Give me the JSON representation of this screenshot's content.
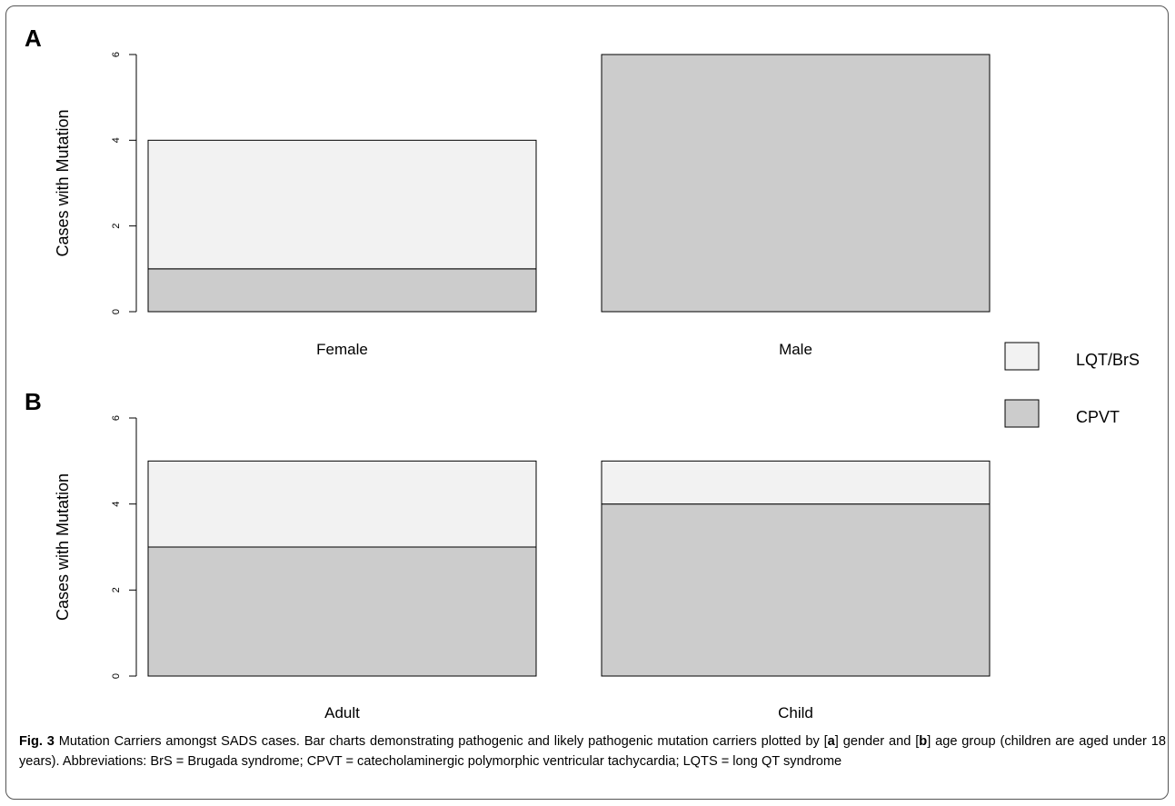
{
  "chart_data": {
    "type": "bar",
    "stacked": true,
    "panels": [
      {
        "letter": "A",
        "categories": [
          "Female",
          "Male"
        ],
        "ylabel": "Cases with Mutation",
        "ylim": [
          0,
          6
        ],
        "yticks": [
          0,
          2,
          4,
          6
        ],
        "series": [
          {
            "name": "CPVT",
            "values": [
              1,
              6
            ]
          },
          {
            "name": "LQT/BrS",
            "values": [
              3,
              0
            ]
          }
        ]
      },
      {
        "letter": "B",
        "categories": [
          "Adult",
          "Child"
        ],
        "ylabel": "Cases with Mutation",
        "ylim": [
          0,
          6
        ],
        "yticks": [
          0,
          2,
          4,
          6
        ],
        "series": [
          {
            "name": "CPVT",
            "values": [
              3,
              4
            ]
          },
          {
            "name": "LQT/BrS",
            "values": [
              2,
              1
            ]
          }
        ]
      }
    ],
    "legend": {
      "position": "right",
      "entries": [
        {
          "name": "LQT/BrS",
          "color": "#f2f2f2"
        },
        {
          "name": "CPVT",
          "color": "#cccccc"
        }
      ]
    }
  },
  "colors": {
    "CPVT": "#cccccc",
    "LQT/BrS": "#f2f2f2"
  },
  "caption": {
    "fig_label": "Fig. 3",
    "text1": " Mutation Carriers amongst SADS cases. Bar charts demonstrating pathogenic and likely pathogenic mutation carriers plotted by [",
    "ref_a": "a",
    "text2": "] gender and [",
    "ref_b": "b",
    "text3": "] age group (children are aged under 18 years). Abbreviations: BrS = Brugada syndrome; CPVT = catecholaminergic polymorphic ventricular tachycardia; LQTS = long QT syndrome"
  }
}
